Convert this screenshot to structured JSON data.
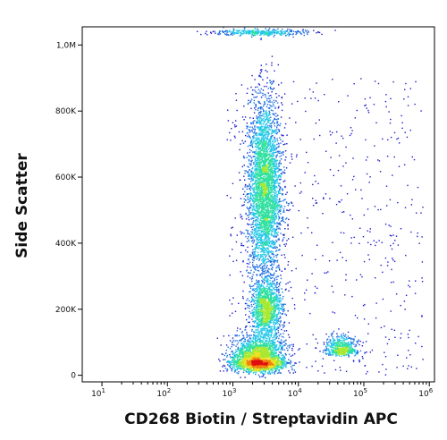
{
  "chart_data": {
    "type": "scatter",
    "subtype": "flow-cytometry-density-dot-plot",
    "xlabel": "CD268 Biotin / Streptavidin APC",
    "ylabel": "Side Scatter",
    "x_scale": "log",
    "x_ticks": [
      {
        "base": "10",
        "exp": "1",
        "value": 10
      },
      {
        "base": "10",
        "exp": "2",
        "value": 100
      },
      {
        "base": "10",
        "exp": "3",
        "value": 1000
      },
      {
        "base": "10",
        "exp": "4",
        "value": 10000
      },
      {
        "base": "10",
        "exp": "5",
        "value": 100000
      },
      {
        "base": "10",
        "exp": "6",
        "value": 1000000
      }
    ],
    "y_scale": "linear",
    "y_ticks": [
      {
        "label": "0",
        "value": 0
      },
      {
        "label": "200K",
        "value": 200000
      },
      {
        "label": "400K",
        "value": 400000
      },
      {
        "label": "600K",
        "value": 600000
      },
      {
        "label": "800K",
        "value": 800000
      },
      {
        "label": "1,0M",
        "value": 1000000
      }
    ],
    "xlim": [
      5,
      1200000
    ],
    "ylim": [
      -20000,
      1055000
    ],
    "density_colormap": [
      "#1a1acc",
      "#1f6fe0",
      "#22c8e8",
      "#30e0a0",
      "#a8e830",
      "#f0e020",
      "#f08010",
      "#e01010"
    ],
    "populations": [
      {
        "x_center": 3000,
        "y_center": 560000,
        "x_spread_decades": 0.13,
        "y_spread": 140000,
        "relative_count": 0.4
      },
      {
        "x_center": 3200,
        "y_center": 200000,
        "x_spread_decades": 0.12,
        "y_spread": 45000,
        "relative_count": 0.15
      },
      {
        "x_center": 2400,
        "y_center": 45000,
        "x_spread_decades": 0.2,
        "y_spread": 25000,
        "relative_count": 0.3
      },
      {
        "x_center": 45000,
        "y_center": 80000,
        "x_spread_decades": 0.13,
        "y_spread": 15000,
        "relative_count": 0.06
      },
      {
        "x_center": 2500,
        "y_center": 1040000,
        "x_spread_decades": 0.35,
        "y_spread": 5000,
        "relative_count": 0.04
      }
    ]
  }
}
